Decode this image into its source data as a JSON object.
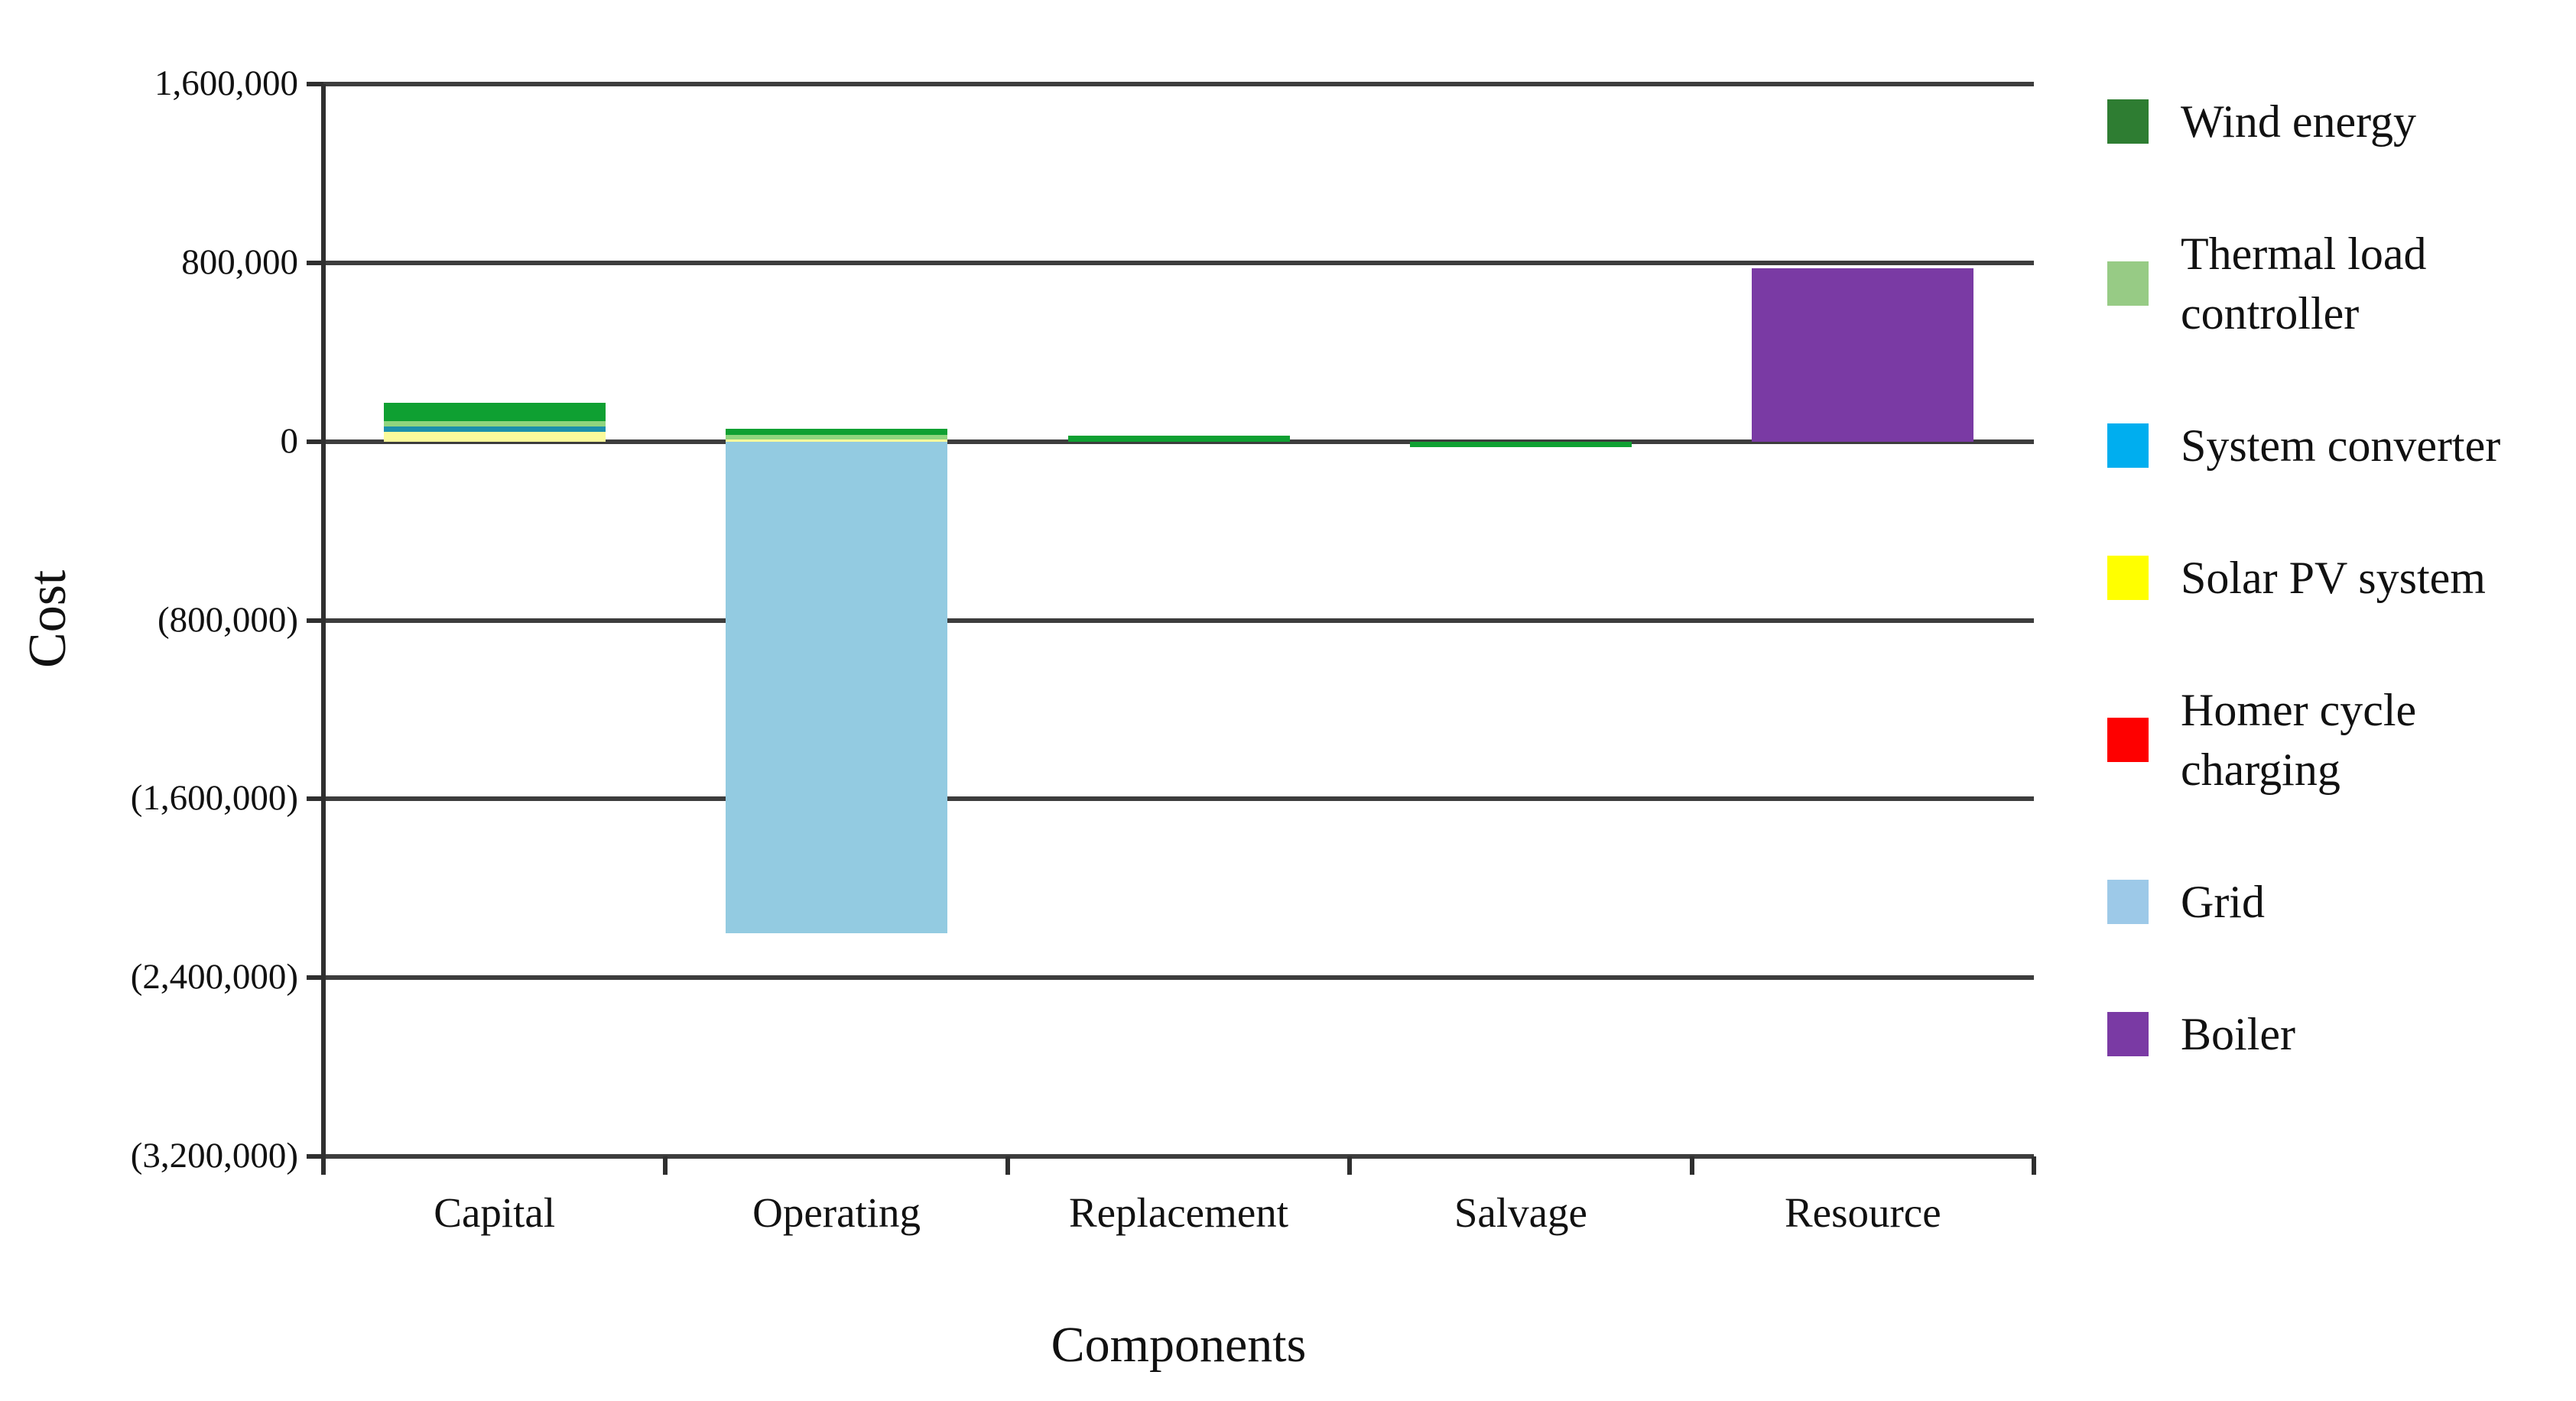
{
  "chart_data": {
    "type": "bar",
    "variant": "stacked-column",
    "title": "",
    "xlabel": "Components",
    "ylabel": "Cost",
    "categories": [
      "Capital",
      "Operating",
      "Replacement",
      "Salvage",
      "Resource"
    ],
    "y_ticks": [
      "1,600,000",
      "800,000",
      "0",
      "(800,000)",
      "(1,600,000)",
      "(2,400,000)",
      "(3,200,000)"
    ],
    "y_tick_values": [
      1600000,
      800000,
      0,
      -800000,
      -1600000,
      -2400000,
      -3200000
    ],
    "ylim": [
      -3200000,
      1600000
    ],
    "grid": true,
    "legend_position": "right",
    "series": [
      {
        "name": "Wind energy",
        "legend_label": "Wind energy",
        "legend_color": "#2E7D32",
        "bar_color": "#0FA032",
        "values": [
          82000,
          28000,
          25000,
          -25000,
          0
        ]
      },
      {
        "name": "Thermal load controller",
        "legend_label": "Thermal load\ncontroller",
        "legend_color": "#97CB85",
        "bar_color": "#90D57E",
        "values": [
          25000,
          20000,
          0,
          0,
          0
        ]
      },
      {
        "name": "System converter",
        "legend_label": "System converter",
        "legend_color": "#00AEEF",
        "bar_color": "#1C90AC",
        "values": [
          22000,
          0,
          0,
          0,
          0
        ]
      },
      {
        "name": "Solar PV system",
        "legend_label": "Solar PV system",
        "legend_color": "#FFFF00",
        "bar_color": "#FAFA9C",
        "values": [
          45000,
          10000,
          0,
          0,
          0
        ]
      },
      {
        "name": "Homer cycle charging",
        "legend_label": "Homer cycle\ncharging",
        "legend_color": "#FE0000",
        "bar_color": "#FE0000",
        "values": [
          0,
          0,
          0,
          0,
          0
        ]
      },
      {
        "name": "Grid",
        "legend_label": "Grid",
        "legend_color": "#9DC9E8",
        "bar_color": "#93CBE1",
        "values": [
          0,
          -2200000,
          0,
          0,
          0
        ]
      },
      {
        "name": "Boiler",
        "legend_label": "Boiler",
        "legend_color": "#7A3AA4",
        "bar_color": "#7A3AA4",
        "values": [
          0,
          0,
          0,
          0,
          775000
        ]
      }
    ]
  }
}
